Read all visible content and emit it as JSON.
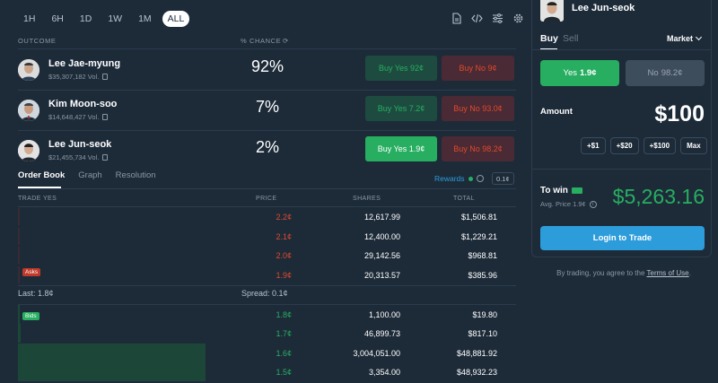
{
  "time_ranges": [
    "1H",
    "6H",
    "1D",
    "1W",
    "1M",
    "ALL"
  ],
  "active_range": "ALL",
  "headers": {
    "outcome": "OUTCOME",
    "chance": "% CHANCE"
  },
  "outcomes": [
    {
      "name": "Lee Jae-myung",
      "volume": "$35,307,182 Vol.",
      "chance": "92%",
      "yes": "Buy Yes 92¢",
      "no": "Buy No 9¢"
    },
    {
      "name": "Kim Moon-soo",
      "volume": "$14,648,427 Vol.",
      "chance": "7%",
      "yes": "Buy Yes 7.2¢",
      "no": "Buy No 93.0¢"
    },
    {
      "name": "Lee Jun-seok",
      "volume": "$21,455,734 Vol.",
      "chance": "2%",
      "yes": "Buy Yes 1.9¢",
      "no": "Buy No 98.2¢"
    }
  ],
  "tabs": [
    "Order Book",
    "Graph",
    "Resolution"
  ],
  "rewards": {
    "label": "Rewards",
    "spread": "0.1¢"
  },
  "orderbook": {
    "headers": {
      "trade": "TRADE YES",
      "price": "PRICE",
      "shares": "SHARES",
      "total": "TOTAL"
    },
    "asks": [
      {
        "price": "2.2¢",
        "shares": "12,617.99",
        "total": "$1,506.81"
      },
      {
        "price": "2.1¢",
        "shares": "12,400.00",
        "total": "$1,229.21"
      },
      {
        "price": "2.0¢",
        "shares": "29,142.56",
        "total": "$968.81"
      },
      {
        "price": "1.9¢",
        "shares": "20,313.57",
        "total": "$385.96"
      }
    ],
    "asks_tag": "Asks",
    "last": "Last: 1.8¢",
    "spread": "Spread: 0.1¢",
    "bids_tag": "Bids",
    "bids": [
      {
        "price": "1.8¢",
        "shares": "1,100.00",
        "total": "$19.80"
      },
      {
        "price": "1.7¢",
        "shares": "46,899.73",
        "total": "$817.10"
      },
      {
        "price": "1.6¢",
        "shares": "3,004,051.00",
        "total": "$48,881.92"
      },
      {
        "price": "1.5¢",
        "shares": "3,354.00",
        "total": "$48,932.23"
      }
    ]
  },
  "panel": {
    "name": "Lee Jun-seok",
    "buy": "Buy",
    "sell": "Sell",
    "order_type": "Market",
    "yes_label": "Yes",
    "yes_price": "1.9¢",
    "no_label": "No",
    "no_price": "98.2¢",
    "amount_label": "Amount",
    "amount": "$100",
    "chips": [
      "+$1",
      "+$20",
      "+$100",
      "Max"
    ],
    "to_win_label": "To win",
    "avg_price": "Avg. Price 1.9¢",
    "to_win": "$5,263.16",
    "login": "Login to Trade",
    "terms_prefix": "By trading, you agree to the ",
    "terms_link": "Terms of Use",
    "terms_suffix": "."
  },
  "colors": {
    "bg": "#1d2b39",
    "green": "#27ae60",
    "red": "#e0492c",
    "blue": "#2d9cdb"
  }
}
